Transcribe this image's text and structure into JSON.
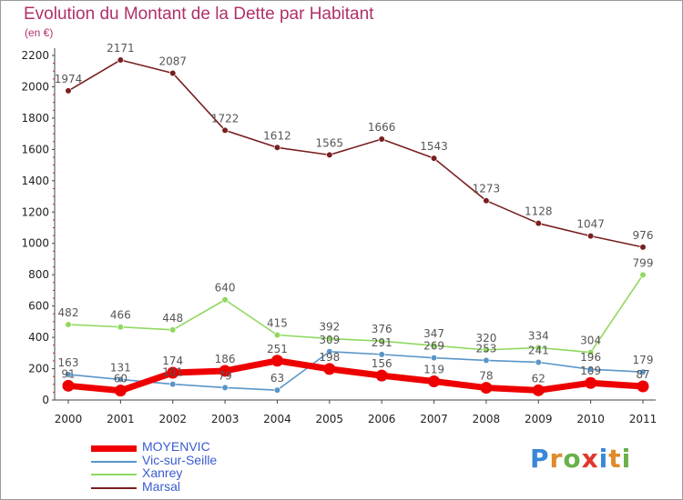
{
  "header": {
    "title": "Evolution du Montant de la Dette par Habitant",
    "unit": "(en €)"
  },
  "brand": {
    "text": "Proxiti",
    "letter_colors": [
      "#3a86d8",
      "#e08a2a",
      "#6ab04c",
      "#e0382a",
      "#3a86d8",
      "#e08a2a",
      "#6ab04c"
    ]
  },
  "chart_data": {
    "type": "line",
    "title": "Evolution du Montant de la Dette par Habitant",
    "subtitle": "(en €)",
    "xlabel": "",
    "ylabel": "",
    "x": [
      "2000",
      "2001",
      "2002",
      "2003",
      "2004",
      "2005",
      "2006",
      "2007",
      "2008",
      "2009",
      "2010",
      "2011"
    ],
    "ylim": [
      0,
      2200
    ],
    "yticks": [
      0,
      200,
      400,
      600,
      800,
      1000,
      1200,
      1400,
      1600,
      1800,
      2000,
      2200
    ],
    "grid": false,
    "legend": "bottom-left",
    "series": [
      {
        "name": "MOYENVIC",
        "color": "#ee0000",
        "values": [
          91,
          60,
          174,
          186,
          251,
          198,
          156,
          119,
          78,
          62,
          109,
          87
        ]
      },
      {
        "name": "Vic-sur-Seille",
        "color": "#5a95c8",
        "values": [
          163,
          131,
          101,
          79,
          63,
          309,
          291,
          269,
          253,
          241,
          196,
          179
        ]
      },
      {
        "name": "Xanrey",
        "color": "#90d860",
        "values": [
          482,
          466,
          448,
          640,
          415,
          392,
          376,
          347,
          320,
          334,
          304,
          799
        ]
      },
      {
        "name": "Marsal",
        "color": "#7a1f1f",
        "values": [
          1974,
          2171,
          2087,
          1722,
          1612,
          1565,
          1666,
          1543,
          1273,
          1128,
          1047,
          976
        ]
      }
    ]
  }
}
